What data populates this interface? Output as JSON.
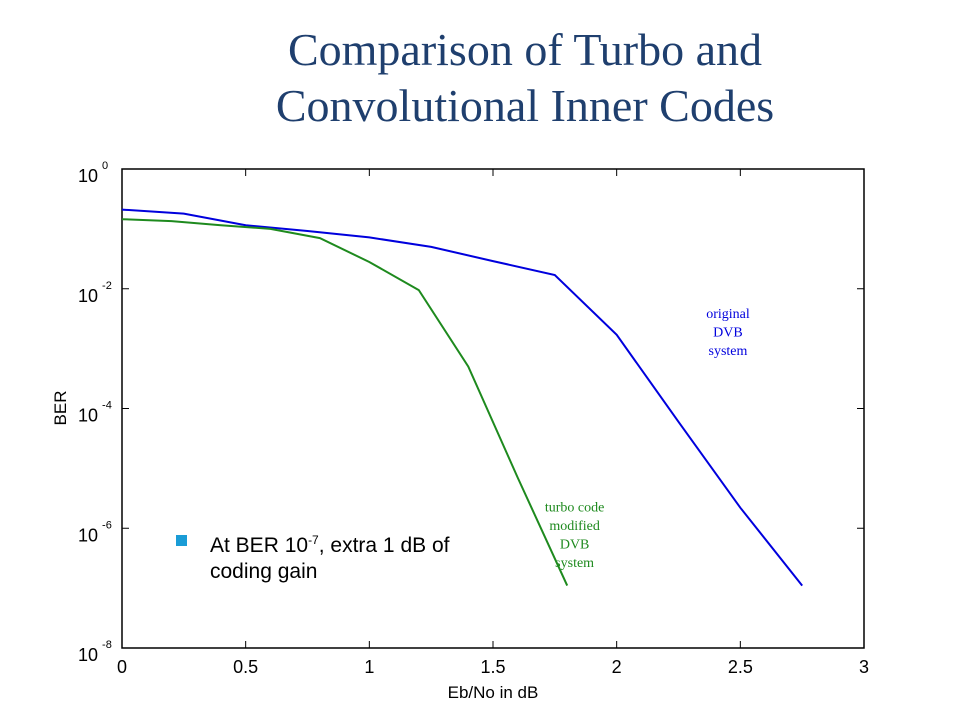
{
  "slide": {
    "title_line1": "Comparison of Turbo and",
    "title_line2": "Convolutional Inner Codes",
    "bullet": {
      "prefix": "At BER 10",
      "exponent": "-7",
      "suffix": ", extra 1 dB of coding gain"
    }
  },
  "chart_data": {
    "type": "line",
    "xlabel": "Eb/No in dB",
    "ylabel": "BER",
    "xlim": [
      0,
      3
    ],
    "ylim": [
      1e-08,
      1
    ],
    "yscale": "log",
    "x_ticks": [
      "0",
      "0.5",
      "1",
      "1.5",
      "2",
      "2.5",
      "3"
    ],
    "y_ticks": [
      {
        "base": "10",
        "exp": "0"
      },
      {
        "base": "10",
        "exp": "-2"
      },
      {
        "base": "10",
        "exp": "-4"
      },
      {
        "base": "10",
        "exp": "-6"
      },
      {
        "base": "10",
        "exp": "-8"
      }
    ],
    "grid": false,
    "series": [
      {
        "id": "original",
        "color": "#0000dd",
        "x": [
          0,
          0.25,
          0.5,
          0.75,
          1.0,
          1.25,
          1.5,
          1.75,
          2.0,
          2.25,
          2.5,
          2.75
        ],
        "y": [
          0.21,
          0.18,
          0.115,
          0.092,
          0.072,
          0.05,
          0.029,
          0.017,
          0.0017,
          6e-05,
          2.2e-06,
          1.1e-07
        ]
      },
      {
        "id": "turbo",
        "color": "#1e8a1e",
        "x": [
          0,
          0.2,
          0.4,
          0.6,
          0.8,
          1.0,
          1.2,
          1.4,
          1.6,
          1.8
        ],
        "y": [
          0.145,
          0.135,
          0.115,
          0.1,
          0.07,
          0.028,
          0.0095,
          0.0005,
          7e-06,
          1.1e-07
        ]
      }
    ],
    "annotations": [
      {
        "series": "original",
        "lines": [
          "original",
          "DVB",
          "system"
        ],
        "x": 2.45,
        "y": 0.0016
      },
      {
        "series": "turbo",
        "lines": [
          "turbo code",
          "modified",
          "DVB",
          "system"
        ],
        "x": 1.83,
        "y": 6.5e-07
      }
    ]
  }
}
